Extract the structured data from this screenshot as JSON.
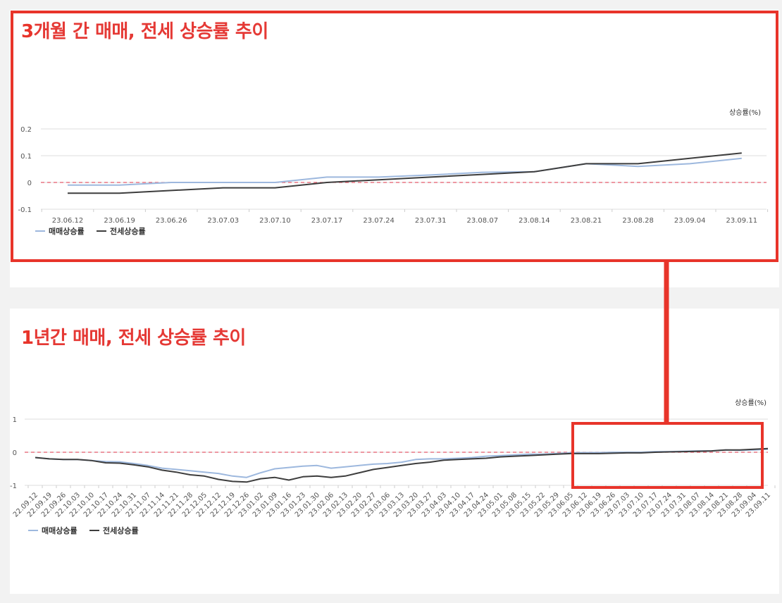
{
  "titles": {
    "chart1_num": "3",
    "chart1_rest": "개월 간 매매, 전세 상승률 추이",
    "chart2_num": "1",
    "chart2_rest": "년간 매매, 전세 상승률 추이"
  },
  "colors": {
    "highlight_border": "#e8342a",
    "sale_line": "#9db8de",
    "jeonse_line": "#3d3d3d",
    "zero_line": "#e35a6a"
  },
  "chart_data": [
    {
      "type": "line",
      "title": "3개월 간 매매, 전세 상승률 추이",
      "ylabel": "상승률(%)",
      "xlabel": "",
      "ylim": [
        -0.1,
        0.2
      ],
      "yticks": [
        "0.2",
        "0.1",
        "0",
        "-0.1"
      ],
      "ytick_values": [
        0.2,
        0.1,
        0,
        -0.1
      ],
      "categories": [
        "23.06.12",
        "23.06.19",
        "23.06.26",
        "23.07.03",
        "23.07.10",
        "23.07.17",
        "23.07.24",
        "23.07.31",
        "23.08.07",
        "23.08.14",
        "23.08.21",
        "23.08.28",
        "23.09.04",
        "23.09.11"
      ],
      "series": [
        {
          "name": "매매상승률",
          "color": "#9db8de",
          "values": [
            -0.01,
            -0.01,
            0,
            0,
            0,
            0.02,
            0.02,
            0.028,
            0.038,
            0.04,
            0.07,
            0.06,
            0.07,
            0.09
          ]
        },
        {
          "name": "전세상승률",
          "color": "#3d3d3d",
          "values": [
            -0.04,
            -0.04,
            -0.03,
            -0.02,
            -0.02,
            0,
            0.01,
            0.02,
            0.03,
            0.04,
            0.07,
            0.07,
            0.09,
            0.11
          ]
        }
      ],
      "zero_line": true,
      "legend": "bottom-left",
      "grid": true
    },
    {
      "type": "line",
      "title": "1년간 매매, 전세 상승률 추이",
      "ylabel": "상승률(%)",
      "xlabel": "",
      "ylim": [
        -1,
        1
      ],
      "yticks": [
        "1",
        "0",
        "-1"
      ],
      "ytick_values": [
        1,
        0,
        -1
      ],
      "categories": [
        "22.09.12",
        "22.09.19",
        "22.09.26",
        "22.10.03",
        "22.10.10",
        "22.10.17",
        "22.10.24",
        "22.10.31",
        "22.11.07",
        "22.11.14",
        "22.11.21",
        "22.11.28",
        "22.12.05",
        "22.12.12",
        "22.12.19",
        "22.12.26",
        "23.01.02",
        "23.01.09",
        "23.01.16",
        "23.01.23",
        "23.01.30",
        "23.02.06",
        "23.02.13",
        "23.02.20",
        "23.02.27",
        "23.03.06",
        "23.03.13",
        "23.03.20",
        "23.03.27",
        "23.04.03",
        "23.04.10",
        "23.04.17",
        "23.04.24",
        "23.05.01",
        "23.05.08",
        "23.05.15",
        "23.05.22",
        "23.05.29",
        "23.06.05",
        "23.06.12",
        "23.06.19",
        "23.06.26",
        "23.07.03",
        "23.07.10",
        "23.07.17",
        "23.07.24",
        "23.07.31",
        "23.08.07",
        "23.08.14",
        "23.08.21",
        "23.08.28",
        "23.09.04",
        "23.09.11"
      ],
      "series": [
        {
          "name": "매매상승률",
          "color": "#9db8de",
          "values": [
            -0.16,
            -0.2,
            -0.22,
            -0.22,
            -0.25,
            -0.28,
            -0.29,
            -0.34,
            -0.4,
            -0.48,
            -0.52,
            -0.56,
            -0.6,
            -0.64,
            -0.72,
            -0.76,
            -0.62,
            -0.5,
            -0.46,
            -0.42,
            -0.4,
            -0.48,
            -0.44,
            -0.4,
            -0.36,
            -0.34,
            -0.3,
            -0.22,
            -0.2,
            -0.2,
            -0.18,
            -0.16,
            -0.12,
            -0.1,
            -0.08,
            -0.06,
            -0.06,
            -0.04,
            -0.02,
            -0.01,
            -0.01,
            0,
            0,
            0,
            0.02,
            0.02,
            0.03,
            0.04,
            0.04,
            0.07,
            0.06,
            0.07,
            0.09
          ]
        },
        {
          "name": "전세상승률",
          "color": "#3d3d3d",
          "values": [
            -0.16,
            -0.2,
            -0.22,
            -0.22,
            -0.25,
            -0.32,
            -0.33,
            -0.38,
            -0.44,
            -0.54,
            -0.6,
            -0.68,
            -0.72,
            -0.82,
            -0.88,
            -0.9,
            -0.8,
            -0.76,
            -0.84,
            -0.74,
            -0.72,
            -0.76,
            -0.72,
            -0.62,
            -0.52,
            -0.46,
            -0.4,
            -0.34,
            -0.3,
            -0.24,
            -0.22,
            -0.2,
            -0.18,
            -0.14,
            -0.12,
            -0.1,
            -0.08,
            -0.06,
            -0.04,
            -0.04,
            -0.04,
            -0.03,
            -0.02,
            -0.02,
            0,
            0.01,
            0.02,
            0.03,
            0.04,
            0.07,
            0.07,
            0.09,
            0.11
          ]
        }
      ],
      "zero_line": true,
      "legend": "bottom-left",
      "grid": true
    }
  ]
}
